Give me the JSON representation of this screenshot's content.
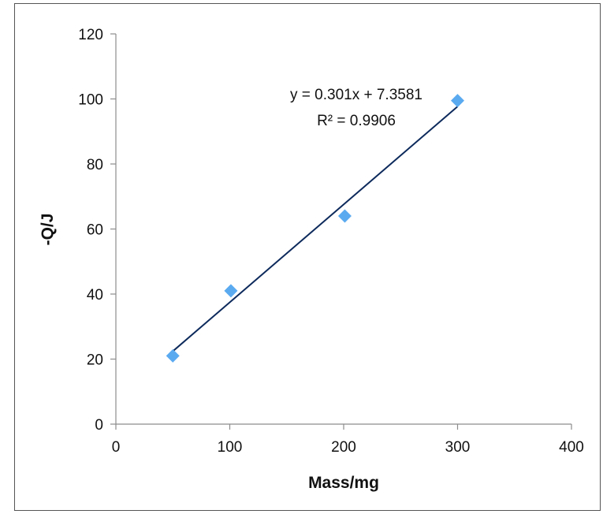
{
  "chart_data": {
    "type": "scatter",
    "title": "",
    "xlabel": "Mass/mg",
    "ylabel": "-Q/J",
    "xlim": [
      0,
      400
    ],
    "ylim": [
      0,
      120
    ],
    "xticks": [
      0,
      100,
      200,
      300,
      400
    ],
    "yticks": [
      0,
      20,
      40,
      60,
      80,
      100,
      120
    ],
    "grid": false,
    "legend": "none",
    "series": [
      {
        "marker": "diamond",
        "color": "#5aaaf0",
        "points": [
          {
            "x": 50,
            "y": 21
          },
          {
            "x": 101,
            "y": 41
          },
          {
            "x": 201,
            "y": 64
          },
          {
            "x": 300,
            "y": 99.5
          }
        ]
      }
    ],
    "trendline": {
      "type": "linear",
      "slope": 0.301,
      "intercept": 7.3581,
      "x_range": [
        50,
        300
      ],
      "color": "#0d2a5c",
      "equation_label": "y = 0.301x + 7.3581",
      "r2_label": "R² = 0.9906"
    }
  }
}
